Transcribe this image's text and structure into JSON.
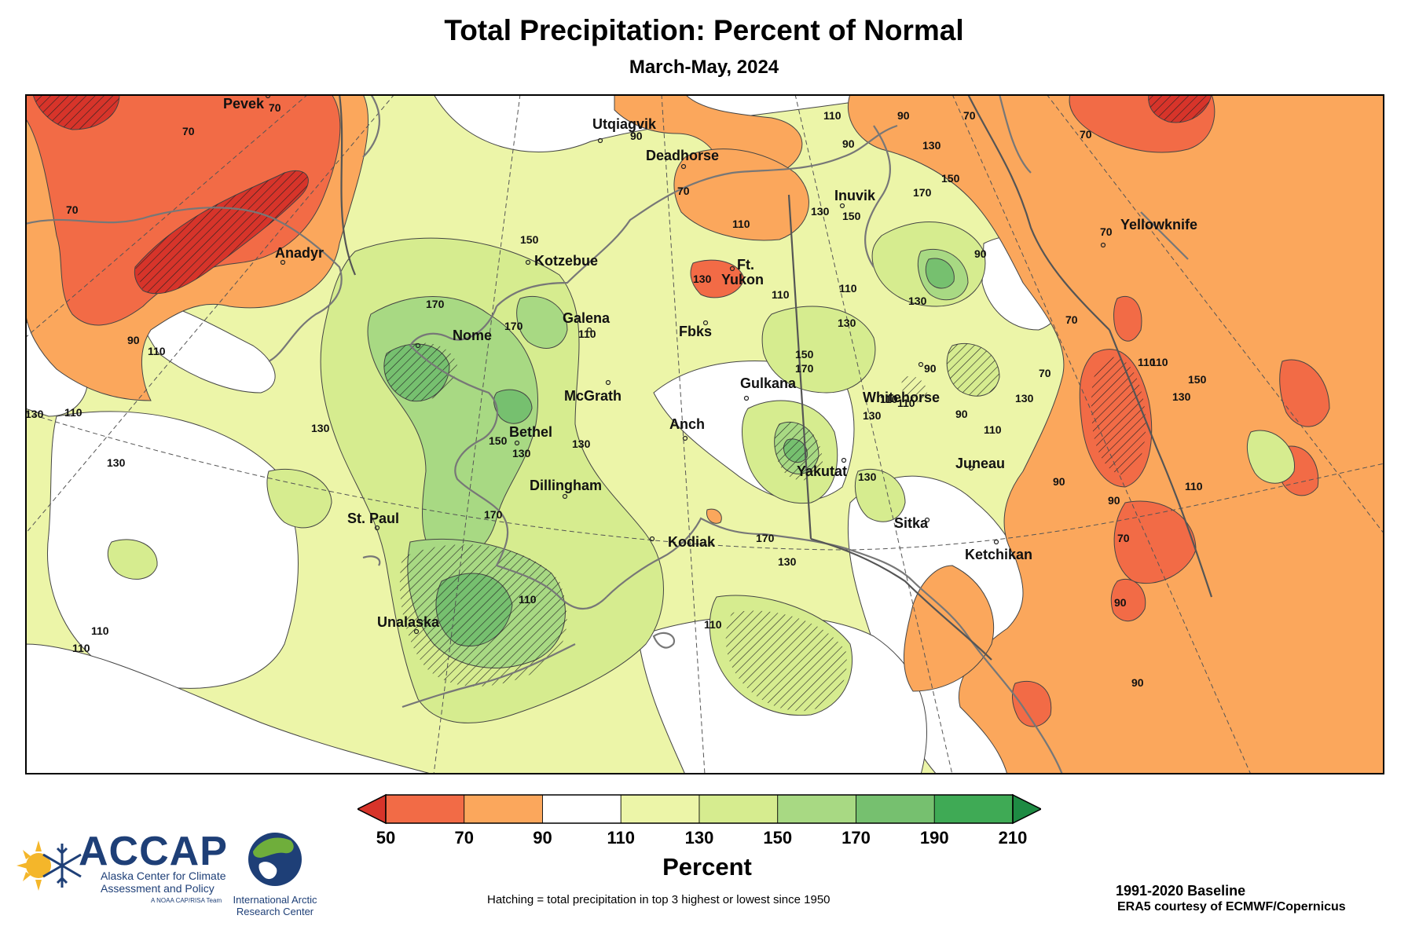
{
  "title": "Total Precipitation: Percent of Normal",
  "subtitle": "March-May, 2024",
  "map": {
    "cities": [
      {
        "name": "Pevek"
      },
      {
        "name": "Anadyr"
      },
      {
        "name": "Utqiagvik"
      },
      {
        "name": "Deadhorse"
      },
      {
        "name": "Inuvik"
      },
      {
        "name": "Yellowknife"
      },
      {
        "name": "Kotzebue"
      },
      {
        "name": "Ft."
      },
      {
        "name": "Yukon"
      },
      {
        "name": "Galena"
      },
      {
        "name": "Nome"
      },
      {
        "name": "Fbks"
      },
      {
        "name": "McGrath"
      },
      {
        "name": "Gulkana"
      },
      {
        "name": "Whitehorse"
      },
      {
        "name": "Bethel"
      },
      {
        "name": "Anch"
      },
      {
        "name": "Juneau"
      },
      {
        "name": "Yakutat"
      },
      {
        "name": "Dillingham"
      },
      {
        "name": "St. Paul"
      },
      {
        "name": "Sitka"
      },
      {
        "name": "Kodiak"
      },
      {
        "name": "Ketchikan"
      },
      {
        "name": "Unalaska"
      }
    ],
    "contour_labels": [
      "70",
      "70",
      "70",
      "70",
      "70",
      "70",
      "70",
      "70",
      "70",
      "70",
      "90",
      "90",
      "90",
      "90",
      "90",
      "90",
      "90",
      "90",
      "90",
      "90",
      "90",
      "110",
      "110",
      "110",
      "110",
      "110",
      "110",
      "110",
      "110",
      "110",
      "110",
      "110",
      "110",
      "110",
      "110",
      "110",
      "110",
      "110",
      "130",
      "130",
      "130",
      "130",
      "130",
      "130",
      "130",
      "130",
      "130",
      "130",
      "130",
      "130",
      "130",
      "130",
      "130",
      "150",
      "150",
      "150",
      "150",
      "150",
      "150",
      "170",
      "170",
      "170",
      "170",
      "170",
      "170"
    ],
    "color_categories": {
      "p50_70": "#f26b46",
      "p70_90": "#fba75c",
      "p90_110": "#ffffff",
      "p110_130": "#ecf5a8",
      "p130_150": "#d6ec8f",
      "p150_170": "#a8d983",
      "p170_190": "#76c06f",
      "p190_210": "#3faa55",
      "below_50": "#d7342a",
      "above_210": "#1e8b43"
    }
  },
  "colorbar": {
    "title": "Percent",
    "ticks": [
      "50",
      "70",
      "90",
      "110",
      "130",
      "150",
      "170",
      "190",
      "210"
    ],
    "colors": [
      "#f26b46",
      "#fba75c",
      "#ffffff",
      "#ecf5a8",
      "#d6ec8f",
      "#a8d983",
      "#76c06f",
      "#3faa55"
    ],
    "under_color": "#d7342a",
    "over_color": "#1e8b43"
  },
  "hatching_note": "Hatching = total precipitation in top 3 highest or lowest since 1950",
  "baseline": "1991-2020 Baseline",
  "credit": "ERA5 courtesy of ECMWF/Copernicus",
  "logos": {
    "accap": {
      "name": "ACCAP",
      "line1": "Alaska Center for Climate",
      "line2": "Assessment and Policy",
      "line3": "A NOAA CAP/RISA Team"
    },
    "iarc": {
      "line1": "International Arctic",
      "line2": "Research Center"
    }
  }
}
